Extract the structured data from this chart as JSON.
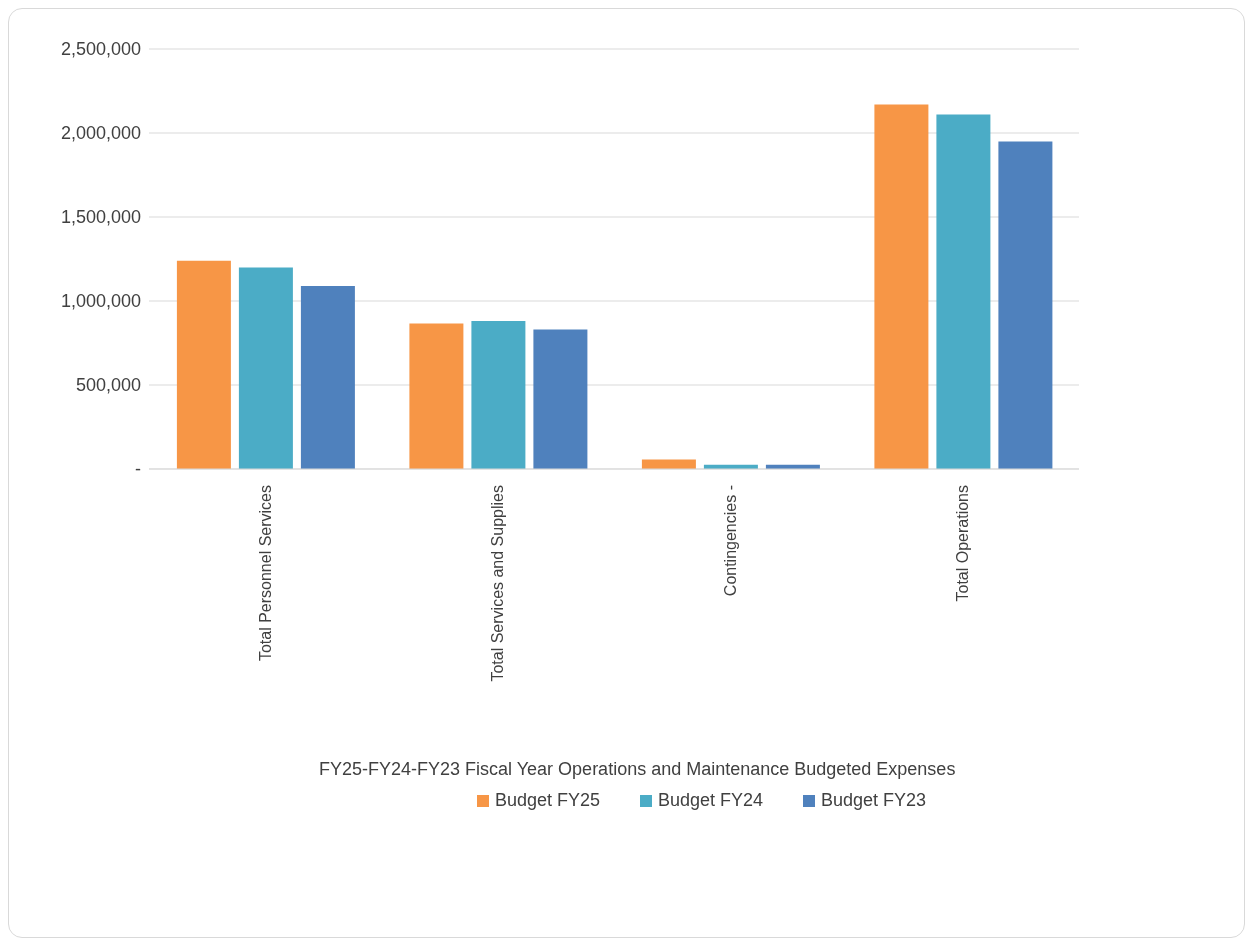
{
  "chart_data": {
    "type": "bar",
    "title": "FY25-FY24-FY23 Fiscal Year Operations and Maintenance Budgeted Expenses",
    "categories": [
      "Total Personnel Services",
      "Total Services and Supplies",
      "Contingencies -",
      "Total Operations"
    ],
    "series": [
      {
        "name": "Budget FY25",
        "color": "#f79646",
        "values": [
          1240000,
          866000,
          56000,
          2170000
        ]
      },
      {
        "name": "Budget FY24",
        "color": "#4bacc6",
        "values": [
          1200000,
          881000,
          25000,
          2110000
        ]
      },
      {
        "name": "Budget FY23",
        "color": "#4f81bd",
        "values": [
          1090000,
          831000,
          25000,
          1950000
        ]
      }
    ],
    "ylim": [
      0,
      2500000
    ],
    "yticks": [
      {
        "value": 0,
        "label": "-"
      },
      {
        "value": 500000,
        "label": "500,000"
      },
      {
        "value": 1000000,
        "label": "1,000,000"
      },
      {
        "value": 1500000,
        "label": "1,500,000"
      },
      {
        "value": 2000000,
        "label": "2,000,000"
      },
      {
        "value": 2500000,
        "label": "2,500,000"
      }
    ],
    "grid": "y",
    "legend": "bottom"
  }
}
